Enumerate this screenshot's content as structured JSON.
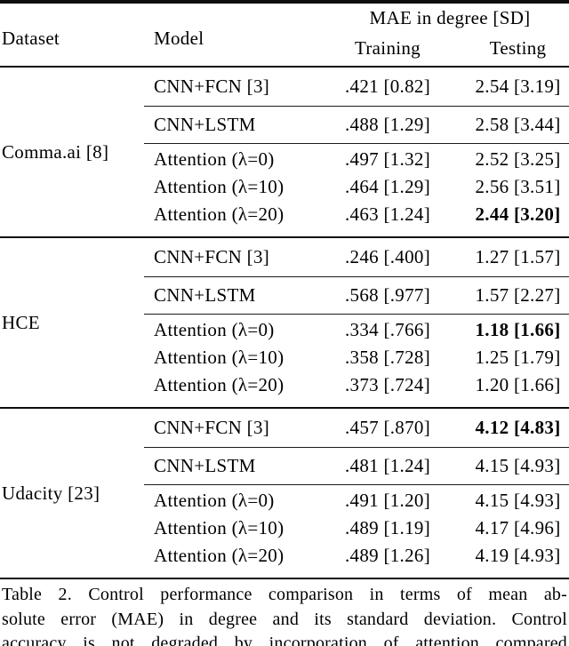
{
  "header": {
    "dataset": "Dataset",
    "model": "Model",
    "mae_span": "MAE in degree [SD]",
    "training": "Training",
    "testing": "Testing"
  },
  "table": {
    "groups": [
      {
        "dataset": "Comma.ai [8]",
        "rows": [
          {
            "model": "CNN+FCN [3]",
            "training": ".421 [0.82]",
            "testing": "2.54 [3.19]"
          },
          {
            "model": "CNN+LSTM",
            "training": ".488 [1.29]",
            "testing": "2.58 [3.44]"
          },
          {
            "model": "Attention (λ=0)",
            "training": ".497 [1.32]",
            "testing": "2.52 [3.25]"
          },
          {
            "model": "Attention (λ=10)",
            "training": ".464 [1.29]",
            "testing": "2.56 [3.51]"
          },
          {
            "model": "Attention (λ=20)",
            "training": ".463 [1.24]",
            "testing": "2.44 [3.20]",
            "testing_bold": "true"
          }
        ]
      },
      {
        "dataset": "HCE",
        "rows": [
          {
            "model": "CNN+FCN [3]",
            "training": ".246 [.400]",
            "testing": "1.27 [1.57]"
          },
          {
            "model": "CNN+LSTM",
            "training": ".568 [.977]",
            "testing": "1.57 [2.27]"
          },
          {
            "model": "Attention (λ=0)",
            "training": ".334 [.766]",
            "testing": "1.18 [1.66]",
            "testing_bold": "true"
          },
          {
            "model": "Attention (λ=10)",
            "training": ".358 [.728]",
            "testing": "1.25 [1.79]"
          },
          {
            "model": "Attention (λ=20)",
            "training": ".373 [.724]",
            "testing": "1.20 [1.66]"
          }
        ]
      },
      {
        "dataset": "Udacity [23]",
        "rows": [
          {
            "model": "CNN+FCN [3]",
            "training": ".457 [.870]",
            "testing": "4.12 [4.83]",
            "testing_bold": "true"
          },
          {
            "model": "CNN+LSTM",
            "training": ".481 [1.24]",
            "testing": "4.15 [4.93]"
          },
          {
            "model": "Attention (λ=0)",
            "training": ".491 [1.20]",
            "testing": "4.15 [4.93]"
          },
          {
            "model": "Attention (λ=10)",
            "training": ".489 [1.19]",
            "testing": "4.17 [4.96]"
          },
          {
            "model": "Attention (λ=20)",
            "training": ".489 [1.26]",
            "testing": "4.19 [4.93]"
          }
        ]
      }
    ]
  },
  "caption": {
    "line1": "Table 2. Control performance comparison in terms of mean ab-",
    "line2": "solute error (MAE) in degree and its standard deviation.  Control",
    "line3": "accuracy is not degraded by incorporation of attention compared"
  },
  "colors": {
    "text": "#000000",
    "rule": "#0d0d0d",
    "background": "#ffffff"
  }
}
